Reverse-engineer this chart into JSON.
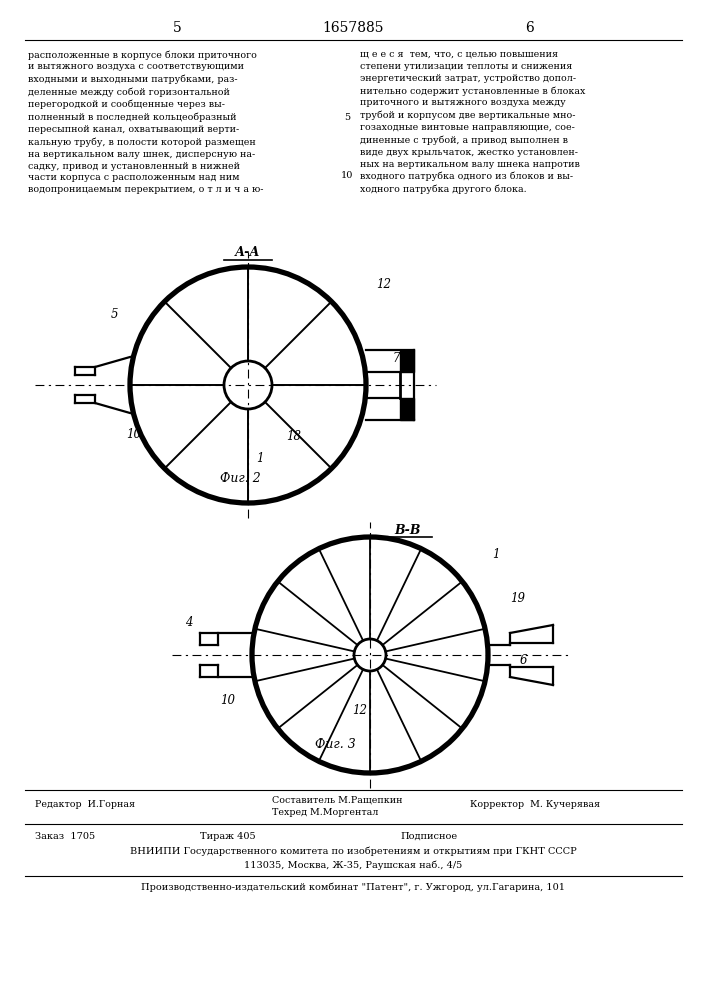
{
  "bg_color": "#ffffff",
  "page_num_left": "5",
  "page_num_center": "1657885",
  "page_num_right": "6",
  "text_left": "расположенные в корпусе блоки приточного\nи вытяжного воздуха с соответствующими\nвходными и выходными патрубками, раз-\nделенные между собой горизонтальной\nперегородкой и сообщенные через вы-\nполненный в последней кольцеобразный\nпересыпной канал, охватывающий верти-\nкальную трубу, в полости которой размещен\nна вертикальном валу шнек, дисперсную на-\nсадку, привод и установленный в нижней\nчасти корпуса с расположенным над ним\nводопроницаемым перекрытием, о т л и ч а ю-",
  "text_right": "щ е е с я  тем, что, с целью повышения\nстепени утилизации теплоты и снижения\nэнергетический затрат, устройство допол-\nнительно содержит установленные в блоках\nприточного и вытяжного воздуха между\nтрубой и корпусом две вертикальные мно-\nгозаходные винтовые направляющие, сое-\nдиненные с трубой, а привод выполнен в\nвиде двух крыльчаток, жестко установлен-\nных на вертикальном валу шнека напротив\nвходного патрубка одного из блоков и вы-\nходного патрубка другого блока.",
  "fig2_label": "А-А",
  "fig2_caption": "Фиг. 2",
  "fig3_label": "В-В",
  "fig3_caption": "Фиг. 3",
  "footer_line1_left": "Редактор  И.Горная",
  "footer_line1_mid1": "Составитель М.Ращепкин",
  "footer_line1_mid2": "Техред М.Моргентал",
  "footer_line1_right": "Корректор  М. Кучерявая",
  "footer_line2a": "Заказ  1705",
  "footer_line2b": "Тираж 405",
  "footer_line2c": "Подписное",
  "footer_line3": "ВНИИПИ Государственного комитета по изобретениям и открытиям при ГКНТ СССР",
  "footer_line4": "113035, Москва, Ж-35, Раушская наб., 4/5",
  "footer_line5": "Производственно-издательский комбинат \"Патент\", г. Ужгород, ул.Гагарина, 101"
}
